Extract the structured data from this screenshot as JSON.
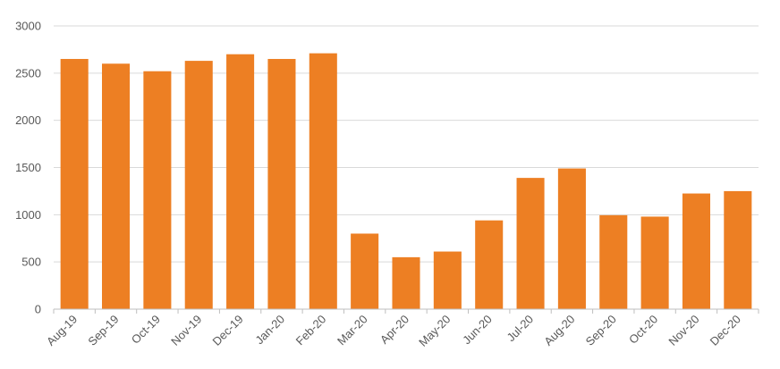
{
  "chart_data": {
    "type": "bar",
    "title": "",
    "xlabel": "",
    "ylabel": "",
    "categories": [
      "Aug-19",
      "Sep-19",
      "Oct-19",
      "Nov-19",
      "Dec-19",
      "Jan-20",
      "Feb-20",
      "Mar-20",
      "Apr-20",
      "May-20",
      "Jun-20",
      "Jul-20",
      "Aug-20",
      "Sep-20",
      "Oct-20",
      "Nov-20",
      "Dec-20"
    ],
    "values": [
      2650,
      2600,
      2520,
      2630,
      2700,
      2650,
      2710,
      800,
      550,
      610,
      940,
      1390,
      1490,
      995,
      980,
      1225,
      1250
    ],
    "ylim": [
      0,
      3000
    ],
    "yticks": [
      "0",
      "500",
      "1000",
      "1500",
      "2000",
      "2500",
      "3000"
    ],
    "grid": true,
    "legend": "none",
    "bar_color": "#ED7F23"
  }
}
